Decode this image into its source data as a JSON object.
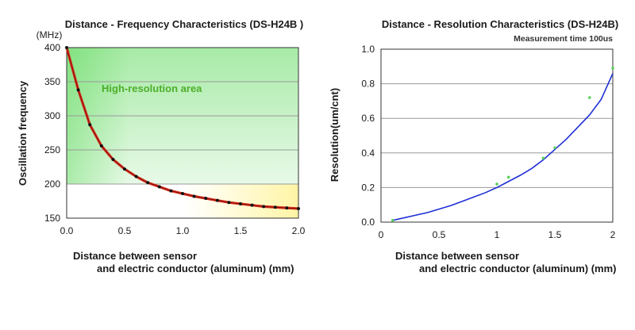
{
  "chart_data": [
    {
      "type": "line",
      "title": "Distance - Frequency Characteristics (DS-H24B )",
      "ylabel": "Oscillation frequency",
      "yunit": "(MHz)",
      "xlabel": [
        "Distance between sensor",
        "and electric conductor (aluminum) (mm)"
      ],
      "xlim": [
        0,
        2.0
      ],
      "ylim": [
        150,
        400
      ],
      "xticks": [
        "0.0",
        "0.5",
        "1.0",
        "1.5",
        "2.0"
      ],
      "yticks": [
        "150",
        "200",
        "250",
        "300",
        "350",
        "400"
      ],
      "grid": true,
      "annotation": "High-resolution area",
      "colors": {
        "line": "#d42a1a",
        "points": "#111111",
        "area_top": "#3dd13a",
        "area_right": "#fff7a8"
      },
      "series": [
        {
          "x": [
            0.0,
            0.1,
            0.2,
            0.3,
            0.4,
            0.5,
            0.6,
            0.7,
            0.8,
            0.9,
            1.0,
            1.1,
            1.2,
            1.3,
            1.4,
            1.5,
            1.6,
            1.7,
            1.8,
            1.9,
            2.0
          ],
          "values": [
            400,
            338,
            287,
            256,
            236,
            222,
            211,
            202,
            196,
            190,
            186,
            182,
            179,
            176,
            173,
            171,
            169,
            167,
            166,
            165,
            164
          ]
        }
      ]
    },
    {
      "type": "scatter",
      "title": "Distance - Resolution Characteristics (DS-H24B)",
      "subtitle": "Measurement time 100us",
      "ylabel": "Resolution(um/cnt)",
      "xlabel": [
        "Distance between sensor",
        "and electric conductor (aluminum) (mm)"
      ],
      "xlim": [
        0,
        2.0
      ],
      "ylim": [
        0,
        1.0
      ],
      "xticks": [
        "0",
        "0.5",
        "1",
        "1.5",
        "2"
      ],
      "yticks": [
        "0.0",
        "0.2",
        "0.4",
        "0.6",
        "0.8",
        "1.0"
      ],
      "grid": true,
      "colors": {
        "fit": "#1f2fd6",
        "points": "#5ad15a"
      },
      "series": [
        {
          "x": [
            0.1,
            1.0,
            1.1,
            1.4,
            1.5,
            1.8,
            2.0
          ],
          "values": [
            0.01,
            0.22,
            0.26,
            0.37,
            0.43,
            0.72,
            0.89
          ]
        }
      ],
      "fit": {
        "x": [
          0.1,
          0.2,
          0.3,
          0.4,
          0.5,
          0.6,
          0.7,
          0.8,
          0.9,
          1.0,
          1.1,
          1.2,
          1.3,
          1.4,
          1.5,
          1.6,
          1.7,
          1.8,
          1.9,
          2.0
        ],
        "values": [
          0.01,
          0.025,
          0.04,
          0.055,
          0.075,
          0.095,
          0.12,
          0.145,
          0.17,
          0.2,
          0.235,
          0.27,
          0.31,
          0.36,
          0.42,
          0.48,
          0.55,
          0.62,
          0.71,
          0.86
        ]
      }
    }
  ]
}
